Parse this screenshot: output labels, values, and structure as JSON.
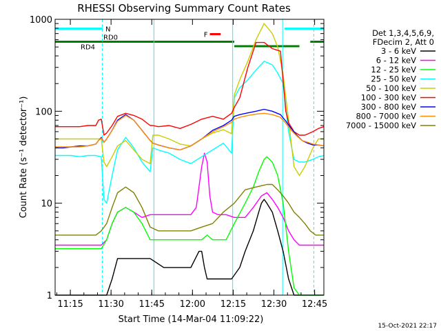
{
  "chart_data": {
    "type": "line",
    "title": "RHESSI Observing Summary Count Rates",
    "xlabel": "Start Time (14-Mar-04 11:09:22)",
    "ylabel": "Count Rate (s⁻¹ detector⁻¹)",
    "x_unit": "minutes since 11:09:22",
    "xlim": [
      0,
      99
    ],
    "ylim": [
      1,
      1000
    ],
    "yscale": "log",
    "x_ticks": [
      {
        "label": "11:15",
        "x": 5.6
      },
      {
        "label": "11:30",
        "x": 20.6
      },
      {
        "label": "11:45",
        "x": 35.6
      },
      {
        "label": "12:00",
        "x": 50.6
      },
      {
        "label": "12:15",
        "x": 65.6
      },
      {
        "label": "12:30",
        "x": 80.6
      },
      {
        "label": "12:45",
        "x": 95.6
      }
    ],
    "y_ticks": [
      {
        "label": "1",
        "y": 1
      },
      {
        "label": "10",
        "y": 10
      },
      {
        "label": "100",
        "y": 100
      },
      {
        "label": "1000",
        "y": 1000
      }
    ],
    "legend_header": [
      "Det 1,3,4,5,6,9,",
      "FDecim 2, Att 0"
    ],
    "series": [
      {
        "name": "3 - 6 keV",
        "color": "#000000",
        "x": [
          0,
          5,
          10,
          15,
          17,
          19,
          21,
          23,
          26,
          30,
          35,
          40,
          45,
          50,
          53,
          54,
          55,
          56,
          57,
          60,
          63,
          65,
          68,
          70,
          73,
          75,
          76,
          77,
          78,
          80,
          82,
          84,
          86,
          88,
          90,
          92,
          95,
          97,
          99
        ],
        "y": [
          1,
          1,
          1,
          1,
          1,
          1,
          1.5,
          2.5,
          2.5,
          2.5,
          2.5,
          2,
          2,
          2,
          3,
          3,
          2,
          1.5,
          1.5,
          1.5,
          1.5,
          1.5,
          2,
          3,
          5,
          8,
          10,
          11,
          10,
          8,
          5,
          3,
          1.5,
          1,
          1,
          1,
          1,
          1,
          1
        ]
      },
      {
        "name": "6 - 12 keV",
        "color": "#ff00ff",
        "x": [
          0,
          5,
          10,
          15,
          17,
          19,
          21,
          23,
          26,
          29,
          32,
          35,
          38,
          42,
          46,
          50,
          52,
          54,
          55,
          56,
          57,
          58,
          60,
          63,
          66,
          70,
          73,
          76,
          78,
          80,
          82,
          84,
          86,
          88,
          90,
          92,
          95,
          97,
          99
        ],
        "y": [
          3.5,
          3.5,
          3.5,
          3.5,
          3.5,
          4,
          6,
          8,
          9,
          8,
          7,
          7.5,
          7.5,
          7.5,
          7.5,
          7.5,
          9,
          25,
          35,
          28,
          12,
          8,
          7.5,
          7.5,
          7,
          7,
          9,
          12,
          13,
          11,
          9,
          7,
          5,
          4,
          3.5,
          3.5,
          3.5,
          3.5,
          3.5
        ]
      },
      {
        "name": "12 - 25 keV",
        "color": "#00ff00",
        "x": [
          0,
          5,
          10,
          15,
          17,
          19,
          21,
          23,
          26,
          29,
          32,
          35,
          38,
          42,
          46,
          50,
          54,
          56,
          58,
          60,
          63,
          66,
          70,
          73,
          75,
          77,
          78,
          80,
          82,
          84,
          86,
          88,
          90,
          92,
          95,
          97,
          99
        ],
        "y": [
          3.2,
          3.2,
          3.2,
          3.2,
          3.2,
          4,
          6,
          8,
          9,
          8,
          6,
          4,
          4,
          4,
          4,
          4,
          4,
          4.5,
          4,
          4,
          4,
          6,
          10,
          15,
          22,
          30,
          32,
          28,
          20,
          10,
          3,
          1.2,
          1,
          1,
          1,
          1,
          1
        ]
      },
      {
        "name": "25 - 50 keV",
        "color": "#00ffff",
        "x": [
          0,
          3,
          6,
          9,
          12,
          15,
          17,
          18,
          19,
          21,
          23,
          26,
          29,
          32,
          35,
          36,
          38,
          42,
          46,
          50,
          54,
          58,
          62,
          65,
          66,
          68,
          71,
          74,
          77,
          80,
          82,
          84,
          85,
          86,
          88,
          90,
          92,
          95,
          97,
          99
        ],
        "y": [
          33,
          33,
          33,
          32,
          33,
          33,
          32,
          11,
          10,
          20,
          38,
          52,
          40,
          28,
          22,
          40,
          38,
          35,
          30,
          27,
          32,
          38,
          45,
          35,
          140,
          180,
          220,
          280,
          350,
          320,
          260,
          200,
          110,
          60,
          30,
          28,
          28,
          30,
          32,
          33
        ]
      },
      {
        "name": "50 - 100 keV",
        "color": "#cccc00",
        "x": [
          0,
          3,
          6,
          9,
          12,
          15,
          17,
          18,
          19,
          21,
          23,
          26,
          29,
          32,
          35,
          36,
          38,
          42,
          46,
          50,
          54,
          58,
          62,
          65,
          66,
          68,
          71,
          74,
          77,
          80,
          82,
          84,
          86,
          88,
          90,
          92,
          95,
          97,
          99
        ],
        "y": [
          50,
          50,
          50,
          50,
          50,
          50,
          50,
          28,
          25,
          32,
          42,
          48,
          38,
          30,
          27,
          55,
          55,
          50,
          44,
          42,
          50,
          58,
          63,
          57,
          150,
          220,
          350,
          600,
          900,
          700,
          500,
          250,
          80,
          25,
          20,
          25,
          40,
          50,
          50
        ]
      },
      {
        "name": "100 - 300 keV",
        "color": "#ff0000",
        "x": [
          0,
          3,
          6,
          9,
          12,
          15,
          16,
          17,
          18,
          19,
          21,
          23,
          26,
          29,
          32,
          35,
          36,
          38,
          42,
          46,
          50,
          54,
          58,
          62,
          65,
          66,
          68,
          71,
          74,
          77,
          80,
          83,
          85,
          86,
          88,
          90,
          92,
          95,
          97,
          99
        ],
        "y": [
          68,
          68,
          68,
          68,
          70,
          70,
          80,
          82,
          55,
          58,
          70,
          88,
          95,
          90,
          82,
          70,
          70,
          68,
          70,
          65,
          72,
          82,
          88,
          82,
          95,
          110,
          140,
          300,
          560,
          560,
          480,
          450,
          100,
          75,
          60,
          55,
          55,
          60,
          65,
          68
        ]
      },
      {
        "name": "300 - 800 keV",
        "color": "#0000ff",
        "x": [
          0,
          3,
          6,
          9,
          12,
          15,
          16,
          17,
          18,
          19,
          21,
          23,
          26,
          29,
          32,
          35,
          36,
          38,
          42,
          46,
          50,
          54,
          58,
          62,
          65,
          66,
          68,
          71,
          74,
          77,
          80,
          83,
          85,
          87,
          89,
          91,
          93,
          95,
          97,
          99
        ],
        "y": [
          40,
          40,
          41,
          42,
          42,
          44,
          48,
          52,
          46,
          50,
          62,
          80,
          92,
          80,
          62,
          48,
          45,
          43,
          40,
          38,
          42,
          50,
          62,
          70,
          80,
          88,
          92,
          96,
          100,
          105,
          100,
          92,
          78,
          65,
          55,
          48,
          45,
          43,
          43,
          42
        ]
      },
      {
        "name": "800 - 7000 keV",
        "color": "#ff8c00",
        "x": [
          0,
          3,
          6,
          9,
          12,
          15,
          16,
          17,
          18,
          19,
          21,
          23,
          26,
          29,
          32,
          35,
          36,
          38,
          42,
          46,
          50,
          54,
          58,
          62,
          65,
          66,
          68,
          71,
          74,
          77,
          80,
          83,
          85,
          87,
          89,
          91,
          93,
          95,
          97,
          99
        ],
        "y": [
          41,
          41,
          41,
          41,
          42,
          44,
          48,
          51,
          46,
          50,
          62,
          78,
          90,
          80,
          62,
          48,
          45,
          43,
          40,
          38,
          42,
          50,
          60,
          68,
          76,
          82,
          86,
          90,
          93,
          95,
          92,
          86,
          74,
          62,
          54,
          48,
          46,
          44,
          43,
          42
        ]
      },
      {
        "name": "7000 - 15000 keV",
        "color": "#808000",
        "x": [
          0,
          3,
          6,
          9,
          12,
          15,
          17,
          19,
          21,
          23,
          26,
          29,
          32,
          35,
          38,
          42,
          46,
          50,
          54,
          58,
          62,
          66,
          70,
          74,
          78,
          80,
          82,
          84,
          86,
          88,
          90,
          92,
          94,
          96,
          99
        ],
        "y": [
          4.5,
          4.5,
          4.5,
          4.5,
          4.5,
          4.5,
          5,
          6,
          9,
          13,
          15,
          13,
          9,
          5.5,
          5,
          5,
          5,
          5,
          5.5,
          6,
          8,
          10,
          14,
          15,
          16,
          16,
          14,
          12,
          10,
          8,
          7,
          6,
          5,
          4.5,
          4.5
        ]
      }
    ],
    "annotations": [
      {
        "label": "N",
        "color": "#00ffff",
        "x": [
          0,
          17.5
        ],
        "y": 790
      },
      {
        "label": "",
        "color": "#00ffff",
        "x": [
          84.5,
          99
        ],
        "y": 790
      },
      {
        "label": "RD0",
        "color": "#008000",
        "x": [
          0,
          37
        ],
        "y": 570
      },
      {
        "label": "RD4",
        "color": "#008000",
        "x": [
          0,
          37
        ],
        "y": 570
      },
      {
        "label": "",
        "color": "#008000",
        "x": [
          37,
          66
        ],
        "y": 570
      },
      {
        "label": "",
        "color": "#008000",
        "x": [
          66,
          90
        ],
        "y": 510
      },
      {
        "label": "",
        "color": "#008000",
        "x": [
          94,
          99
        ],
        "y": 570
      },
      {
        "label": "F",
        "color": "#ff0000",
        "x": [
          57,
          61
        ],
        "y": 690
      }
    ],
    "vlines": [
      {
        "x": 17.4,
        "color": "#00ffff",
        "style": "dashed"
      },
      {
        "x": 36.4,
        "color": "#00ffff",
        "style": "solid"
      },
      {
        "x": 65.4,
        "color": "#00ffff",
        "style": "solid"
      },
      {
        "x": 83.8,
        "color": "#00ffff",
        "style": "solid"
      },
      {
        "x": 95.3,
        "color": "#00ffff",
        "style": "dashed"
      }
    ]
  },
  "footer": {
    "timestamp": "15-Oct-2021 22:17"
  }
}
